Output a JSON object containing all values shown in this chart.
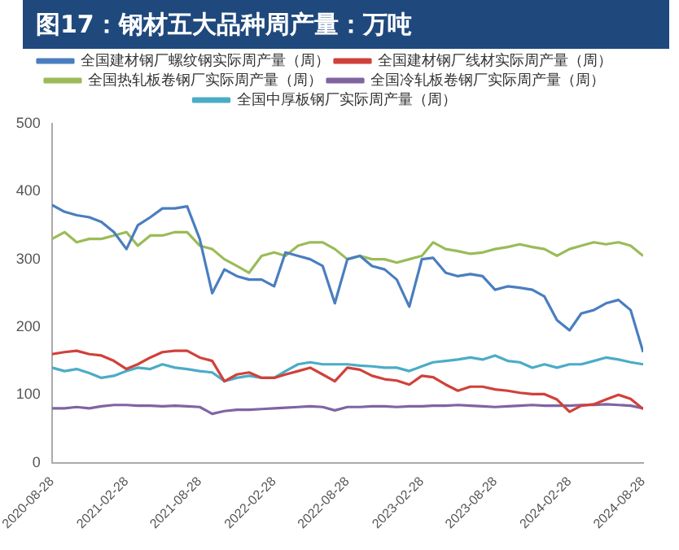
{
  "chart_data": {
    "type": "line",
    "title": "图17：钢材五大品种周产量：万吨",
    "x": [
      "2020-08-28",
      "2020-09-28",
      "2020-10-28",
      "2020-11-28",
      "2020-12-28",
      "2021-01-28",
      "2021-02-28",
      "2021-03-28",
      "2021-04-28",
      "2021-05-28",
      "2021-06-28",
      "2021-07-28",
      "2021-08-28",
      "2021-09-28",
      "2021-10-28",
      "2021-11-28",
      "2021-12-28",
      "2022-01-28",
      "2022-02-28",
      "2022-03-28",
      "2022-04-28",
      "2022-05-28",
      "2022-06-28",
      "2022-07-28",
      "2022-08-28",
      "2022-09-28",
      "2022-10-28",
      "2022-11-28",
      "2022-12-28",
      "2023-01-28",
      "2023-02-28",
      "2023-03-28",
      "2023-04-28",
      "2023-05-28",
      "2023-06-28",
      "2023-07-28",
      "2023-08-28",
      "2023-09-28",
      "2023-10-28",
      "2023-11-28",
      "2023-12-28",
      "2024-01-28",
      "2024-02-28",
      "2024-03-28",
      "2024-04-28",
      "2024-05-28",
      "2024-06-28",
      "2024-07-28",
      "2024-08-28"
    ],
    "series": [
      {
        "name": "全国建材钢厂螺纹钢实际周产量（周）",
        "color": "#4a7ebf",
        "values": [
          380,
          370,
          365,
          362,
          355,
          340,
          315,
          350,
          362,
          375,
          375,
          378,
          330,
          250,
          285,
          275,
          270,
          270,
          260,
          310,
          305,
          300,
          290,
          235,
          300,
          305,
          290,
          285,
          270,
          230,
          300,
          302,
          280,
          275,
          278,
          275,
          255,
          260,
          258,
          255,
          245,
          210,
          195,
          220,
          225,
          235,
          240,
          225,
          163
        ]
      },
      {
        "name": "全国建材钢厂线材实际周产量（周）",
        "color": "#d0413a",
        "values": [
          160,
          163,
          165,
          160,
          158,
          150,
          138,
          145,
          155,
          163,
          165,
          165,
          155,
          150,
          120,
          130,
          133,
          125,
          125,
          130,
          135,
          140,
          130,
          120,
          140,
          137,
          128,
          123,
          121,
          115,
          128,
          126,
          115,
          106,
          112,
          112,
          108,
          106,
          103,
          101,
          101,
          93,
          75,
          84,
          86,
          93,
          100,
          94,
          79
        ]
      },
      {
        "name": "全国热轧板卷钢厂实际周产量（周）",
        "color": "#9bbb59",
        "values": [
          330,
          340,
          325,
          330,
          330,
          335,
          340,
          320,
          335,
          335,
          340,
          340,
          320,
          315,
          300,
          290,
          280,
          305,
          310,
          305,
          320,
          325,
          325,
          315,
          300,
          305,
          300,
          300,
          295,
          300,
          305,
          325,
          315,
          312,
          308,
          310,
          315,
          318,
          322,
          318,
          315,
          305,
          315,
          320,
          325,
          322,
          325,
          320,
          305
        ]
      },
      {
        "name": "全国冷轧板卷钢厂实际周产量（周）",
        "color": "#8064a2",
        "values": [
          80,
          80,
          82,
          80,
          83,
          85,
          85,
          84,
          84,
          83,
          84,
          83,
          82,
          72,
          76,
          78,
          78,
          79,
          80,
          81,
          82,
          83,
          82,
          77,
          82,
          82,
          83,
          83,
          82,
          83,
          83,
          84,
          84,
          85,
          84,
          83,
          82,
          83,
          84,
          85,
          84,
          84,
          84,
          85,
          85,
          86,
          85,
          84,
          80
        ]
      },
      {
        "name": "全国中厚板钢厂实际周产量（周）",
        "color": "#4bacc6",
        "values": [
          140,
          135,
          138,
          132,
          125,
          128,
          135,
          140,
          138,
          145,
          140,
          138,
          135,
          133,
          120,
          125,
          128,
          125,
          125,
          135,
          145,
          148,
          145,
          145,
          145,
          143,
          142,
          140,
          140,
          135,
          142,
          148,
          150,
          152,
          155,
          152,
          158,
          150,
          148,
          140,
          145,
          140,
          145,
          145,
          150,
          155,
          152,
          148,
          145
        ]
      }
    ],
    "xlim": [
      "2020-08-28",
      "2024-08-28"
    ],
    "xticks": [
      "2020-08-28",
      "2021-02-28",
      "2021-08-28",
      "2022-02-28",
      "2022-08-28",
      "2023-02-28",
      "2023-08-28",
      "2024-02-28",
      "2024-08-28"
    ],
    "ylim": [
      0,
      500
    ],
    "yticks": [
      0,
      100,
      200,
      300,
      400,
      500
    ],
    "grid": false,
    "legend": "top",
    "marker": "none",
    "line_style": "solid"
  }
}
